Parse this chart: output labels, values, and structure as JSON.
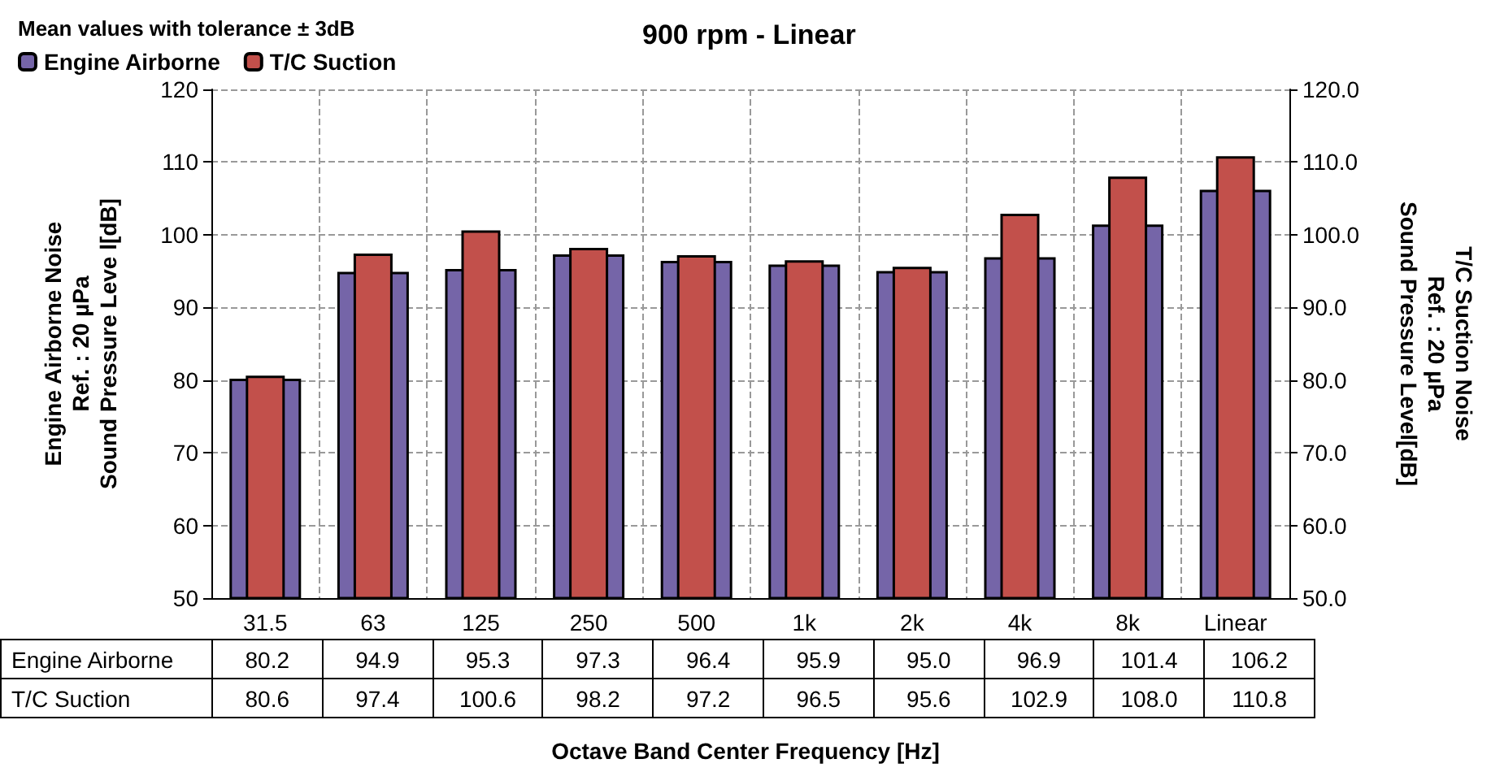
{
  "chart_data": {
    "type": "bar",
    "title": "900 rpm - Linear",
    "legend_title": "Mean values with tolerance ± 3dB",
    "xlabel": "Octave Band Center Frequency [Hz]",
    "ylabel": "Engine Airborne Noise\nRef. : 20 µPa\nSound Pressure Leve l[dB]",
    "y2label": "T/C Suction Noise\nRef. : 20 µPa\nSound Pressure Level[dB]",
    "categories": [
      "31.5",
      "63",
      "125",
      "250",
      "500",
      "1k",
      "2k",
      "4k",
      "8k",
      "Linear"
    ],
    "series": [
      {
        "name": "Engine Airborne",
        "color": "#7565a8",
        "values": [
          80.2,
          94.9,
          95.3,
          97.3,
          96.4,
          95.9,
          95.0,
          96.9,
          101.4,
          106.2
        ],
        "value_labels": [
          "80.2",
          "94.9",
          "95.3",
          "97.3",
          "96.4",
          "95.9",
          "95.0",
          "96.9",
          "101.4",
          "106.2"
        ]
      },
      {
        "name": "T/C Suction",
        "color": "#c2504b",
        "values": [
          80.6,
          97.4,
          100.6,
          98.2,
          97.2,
          96.5,
          95.6,
          102.9,
          108.0,
          110.8
        ],
        "value_labels": [
          "80.6",
          "97.4",
          "100.6",
          "98.2",
          "97.2",
          "96.5",
          "95.6",
          "102.9",
          "108.0",
          "110.8"
        ]
      }
    ],
    "ylim": [
      50,
      120
    ],
    "yticks": [
      50,
      60,
      70,
      80,
      90,
      100,
      110,
      120
    ],
    "y2lim": [
      50,
      120
    ],
    "y2ticks": [
      {
        "value": 50,
        "label": "50.0"
      },
      {
        "value": 60,
        "label": "60.0"
      },
      {
        "value": 70,
        "label": "70.0"
      },
      {
        "value": 80,
        "label": "80.0"
      },
      {
        "value": 90,
        "label": "90.0"
      },
      {
        "value": 100,
        "label": "100.0"
      },
      {
        "value": 110,
        "label": "110.0"
      },
      {
        "value": 120,
        "label": "120.0"
      }
    ],
    "grid": true,
    "legend": "top left"
  }
}
